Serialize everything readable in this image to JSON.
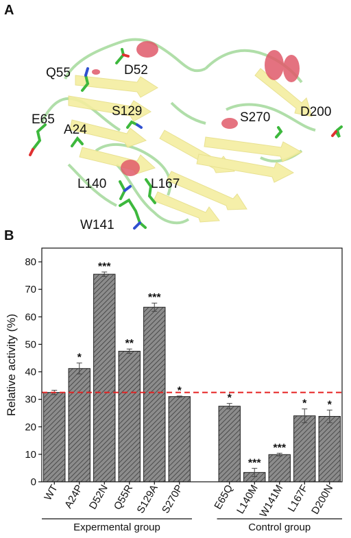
{
  "panel_a": {
    "label": "A",
    "residues": [
      "Q55",
      "D52",
      "S129",
      "E65",
      "A24",
      "S270",
      "D200",
      "L140",
      "L167",
      "W141"
    ]
  },
  "panel_b": {
    "label": "B"
  },
  "colors": {
    "bar_fill": "#8c8c8c",
    "hatch": "#333333",
    "reference_line": "#e52020",
    "helix": "#e05a6a",
    "sheet": "#f4eea0",
    "loop": "#a8dba0",
    "stick_carbon": "#3db83d",
    "stick_oxygen": "#e03030",
    "stick_nitrogen": "#3050d0"
  },
  "chart_data": {
    "type": "bar",
    "categories": [
      "WT",
      "A24P",
      "D52N",
      "Q55R",
      "S129A",
      "S270P",
      "E65Q",
      "L140M",
      "W141M",
      "L167F",
      "D200N"
    ],
    "values": [
      32.5,
      41.2,
      75.5,
      47.5,
      63.5,
      31.0,
      27.5,
      3.4,
      9.9,
      24.0,
      23.8
    ],
    "errors": [
      0.8,
      2.0,
      0.8,
      0.8,
      1.5,
      0.2,
      1.0,
      1.5,
      0.5,
      2.5,
      2.3
    ],
    "significance": [
      "",
      "*",
      "***",
      "**",
      "***",
      "*",
      "*",
      "***",
      "***",
      "*",
      "*"
    ],
    "groups": [
      {
        "name": "Expermental group",
        "categories": [
          "WT",
          "A24P",
          "D52N",
          "Q55R",
          "S129A",
          "S270P"
        ]
      },
      {
        "name": "Control group",
        "categories": [
          "E65Q",
          "L140M",
          "W141M",
          "L167F",
          "D200N"
        ]
      }
    ],
    "reference_line": 32.5,
    "ylabel": "Relative activity (%)",
    "xlabel": "",
    "ylim": [
      0,
      85
    ],
    "yticks": [
      0,
      10,
      20,
      30,
      40,
      50,
      60,
      70,
      80
    ],
    "grid": false
  }
}
